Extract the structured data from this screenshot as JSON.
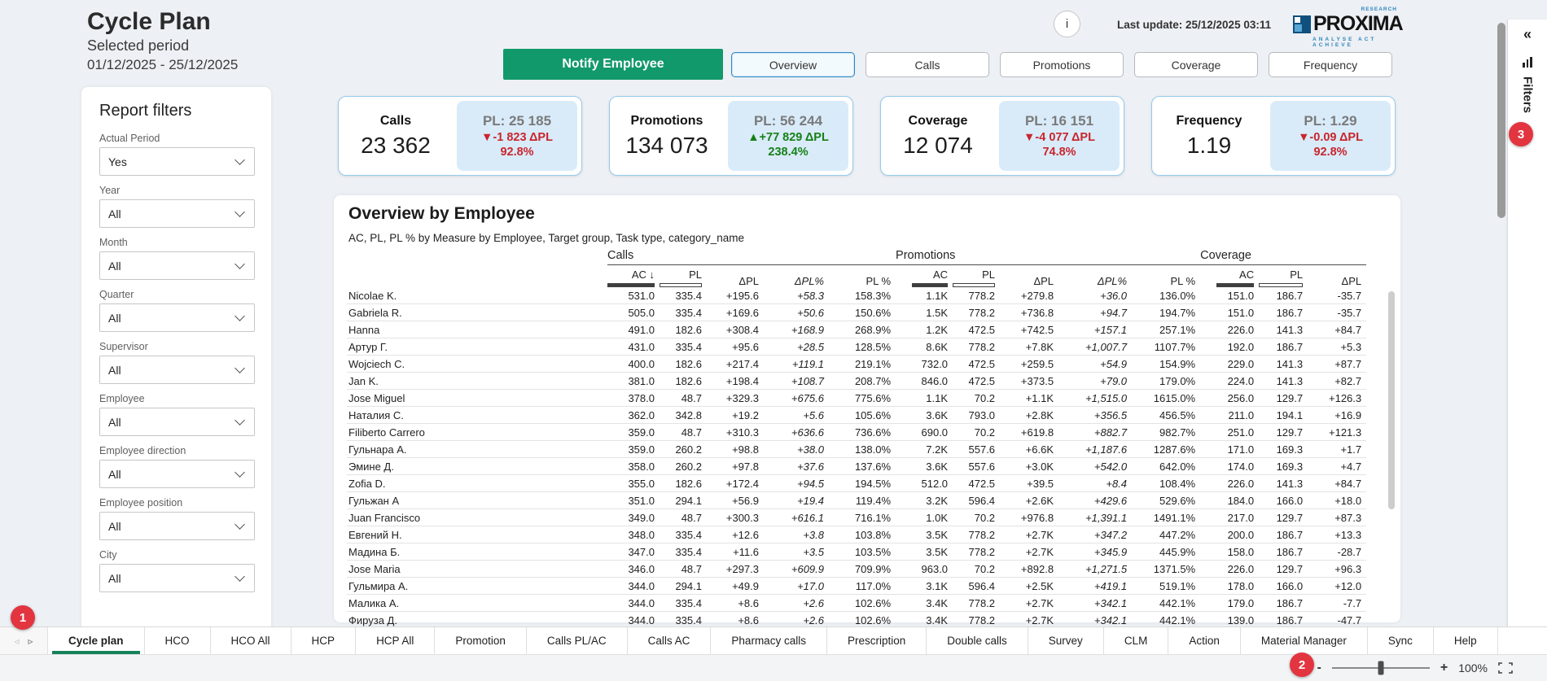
{
  "header": {
    "title": "Cycle Plan",
    "period_label": "Selected period",
    "period_value": "01/12/2025 - 25/12/2025",
    "info_icon": "i",
    "last_update": "Last update: 25/12/2025 03:11",
    "logo": {
      "research": "RESEARCH",
      "name": "PROXIMA",
      "tagline": "ANALYSE ACT ACHIEVE"
    }
  },
  "toolbar": {
    "notify_label": "Notify Employee",
    "view_tabs": [
      {
        "label": "Overview",
        "active": true
      },
      {
        "label": "Calls",
        "active": false
      },
      {
        "label": "Promotions",
        "active": false
      },
      {
        "label": "Coverage",
        "active": false
      },
      {
        "label": "Frequency",
        "active": false
      }
    ]
  },
  "kpis": [
    {
      "label": "Calls",
      "value": "23 362",
      "pl": "PL: 25 185",
      "delta": "▼-1 823 ΔPL",
      "delta_color": "red",
      "pct": "92.8%",
      "pct_color": "red"
    },
    {
      "label": "Promotions",
      "value": "134 073",
      "pl": "PL: 56 244",
      "delta": "▲+77 829 ΔPL",
      "delta_color": "green",
      "pct": "238.4%",
      "pct_color": "green"
    },
    {
      "label": "Coverage",
      "value": "12 074",
      "pl": "PL: 16 151",
      "delta": "▼-4 077 ΔPL",
      "delta_color": "red",
      "pct": "74.8%",
      "pct_color": "red"
    },
    {
      "label": "Frequency",
      "value": "1.19",
      "pl": "PL: 1.29",
      "delta": "▼-0.09 ΔPL",
      "delta_color": "red",
      "pct": "92.8%",
      "pct_color": "red"
    }
  ],
  "filters_panel": {
    "title": "Report filters",
    "items": [
      {
        "label": "Actual Period",
        "value": "Yes"
      },
      {
        "label": "Year",
        "value": "All"
      },
      {
        "label": "Month",
        "value": "All"
      },
      {
        "label": "Quarter",
        "value": "All"
      },
      {
        "label": "Supervisor",
        "value": "All"
      },
      {
        "label": "Employee",
        "value": "All"
      },
      {
        "label": "Employee direction",
        "value": "All"
      },
      {
        "label": "Employee position",
        "value": "All"
      },
      {
        "label": "City",
        "value": "All"
      }
    ]
  },
  "matrix": {
    "title": "Overview by Employee",
    "subtitle": "AC, PL, PL % by Measure by Employee, Target group, Task type, category_name",
    "groups": [
      {
        "label": "Calls",
        "columns": [
          {
            "label": "AC ↓",
            "bar": "solid"
          },
          {
            "label": "PL",
            "bar": "outline"
          },
          {
            "label": "ΔPL"
          },
          {
            "label": "ΔPL%",
            "italic": true
          },
          {
            "label": "PL %"
          }
        ]
      },
      {
        "label": "Promotions",
        "columns": [
          {
            "label": "AC",
            "bar": "solid"
          },
          {
            "label": "PL",
            "bar": "outline"
          },
          {
            "label": "ΔPL"
          },
          {
            "label": "ΔPL%",
            "italic": true
          },
          {
            "label": "PL %"
          }
        ]
      },
      {
        "label": "Coverage",
        "columns": [
          {
            "label": "AC",
            "bar": "solid"
          },
          {
            "label": "PL",
            "bar": "outline"
          },
          {
            "label": "ΔPL"
          }
        ]
      }
    ],
    "rows": [
      {
        "name": "Nicolae K.",
        "values": [
          "531.0",
          "335.4",
          "+195.6",
          "+58.3",
          "158.3%",
          "1.1K",
          "778.2",
          "+279.8",
          "+36.0",
          "136.0%",
          "151.0",
          "186.7",
          "-35.7"
        ]
      },
      {
        "name": "Gabriela R.",
        "values": [
          "505.0",
          "335.4",
          "+169.6",
          "+50.6",
          "150.6%",
          "1.5K",
          "778.2",
          "+736.8",
          "+94.7",
          "194.7%",
          "151.0",
          "186.7",
          "-35.7"
        ]
      },
      {
        "name": "Hanna",
        "values": [
          "491.0",
          "182.6",
          "+308.4",
          "+168.9",
          "268.9%",
          "1.2K",
          "472.5",
          "+742.5",
          "+157.1",
          "257.1%",
          "226.0",
          "141.3",
          "+84.7"
        ]
      },
      {
        "name": "Артур Г.",
        "values": [
          "431.0",
          "335.4",
          "+95.6",
          "+28.5",
          "128.5%",
          "8.6K",
          "778.2",
          "+7.8K",
          "+1,007.7",
          "1107.7%",
          "192.0",
          "186.7",
          "+5.3"
        ]
      },
      {
        "name": "Wojciech C.",
        "values": [
          "400.0",
          "182.6",
          "+217.4",
          "+119.1",
          "219.1%",
          "732.0",
          "472.5",
          "+259.5",
          "+54.9",
          "154.9%",
          "229.0",
          "141.3",
          "+87.7"
        ]
      },
      {
        "name": "Jan K.",
        "values": [
          "381.0",
          "182.6",
          "+198.4",
          "+108.7",
          "208.7%",
          "846.0",
          "472.5",
          "+373.5",
          "+79.0",
          "179.0%",
          "224.0",
          "141.3",
          "+82.7"
        ]
      },
      {
        "name": "Jose Miguel",
        "values": [
          "378.0",
          "48.7",
          "+329.3",
          "+675.6",
          "775.6%",
          "1.1K",
          "70.2",
          "+1.1K",
          "+1,515.0",
          "1615.0%",
          "256.0",
          "129.7",
          "+126.3"
        ]
      },
      {
        "name": "Наталия С.",
        "values": [
          "362.0",
          "342.8",
          "+19.2",
          "+5.6",
          "105.6%",
          "3.6K",
          "793.0",
          "+2.8K",
          "+356.5",
          "456.5%",
          "211.0",
          "194.1",
          "+16.9"
        ]
      },
      {
        "name": "Filiberto Carrero",
        "values": [
          "359.0",
          "48.7",
          "+310.3",
          "+636.6",
          "736.6%",
          "690.0",
          "70.2",
          "+619.8",
          "+882.7",
          "982.7%",
          "251.0",
          "129.7",
          "+121.3"
        ]
      },
      {
        "name": "Гульнара А.",
        "values": [
          "359.0",
          "260.2",
          "+98.8",
          "+38.0",
          "138.0%",
          "7.2K",
          "557.6",
          "+6.6K",
          "+1,187.6",
          "1287.6%",
          "171.0",
          "169.3",
          "+1.7"
        ]
      },
      {
        "name": "Эмине Д.",
        "values": [
          "358.0",
          "260.2",
          "+97.8",
          "+37.6",
          "137.6%",
          "3.6K",
          "557.6",
          "+3.0K",
          "+542.0",
          "642.0%",
          "174.0",
          "169.3",
          "+4.7"
        ]
      },
      {
        "name": "Zofia D.",
        "values": [
          "355.0",
          "182.6",
          "+172.4",
          "+94.5",
          "194.5%",
          "512.0",
          "472.5",
          "+39.5",
          "+8.4",
          "108.4%",
          "226.0",
          "141.3",
          "+84.7"
        ]
      },
      {
        "name": "Гульжан А",
        "values": [
          "351.0",
          "294.1",
          "+56.9",
          "+19.4",
          "119.4%",
          "3.2K",
          "596.4",
          "+2.6K",
          "+429.6",
          "529.6%",
          "184.0",
          "166.0",
          "+18.0"
        ]
      },
      {
        "name": "Juan Francisco",
        "values": [
          "349.0",
          "48.7",
          "+300.3",
          "+616.1",
          "716.1%",
          "1.0K",
          "70.2",
          "+976.8",
          "+1,391.1",
          "1491.1%",
          "217.0",
          "129.7",
          "+87.3"
        ]
      },
      {
        "name": "Евгений Н.",
        "values": [
          "348.0",
          "335.4",
          "+12.6",
          "+3.8",
          "103.8%",
          "3.5K",
          "778.2",
          "+2.7K",
          "+347.2",
          "447.2%",
          "200.0",
          "186.7",
          "+13.3"
        ]
      },
      {
        "name": "Мадина Б.",
        "values": [
          "347.0",
          "335.4",
          "+11.6",
          "+3.5",
          "103.5%",
          "3.5K",
          "778.2",
          "+2.7K",
          "+345.9",
          "445.9%",
          "158.0",
          "186.7",
          "-28.7"
        ]
      },
      {
        "name": "Jose Maria",
        "values": [
          "346.0",
          "48.7",
          "+297.3",
          "+609.9",
          "709.9%",
          "963.0",
          "70.2",
          "+892.8",
          "+1,271.5",
          "1371.5%",
          "226.0",
          "129.7",
          "+96.3"
        ]
      },
      {
        "name": "Гульмира А.",
        "values": [
          "344.0",
          "294.1",
          "+49.9",
          "+17.0",
          "117.0%",
          "3.1K",
          "596.4",
          "+2.5K",
          "+419.1",
          "519.1%",
          "178.0",
          "166.0",
          "+12.0"
        ]
      },
      {
        "name": "Малика А.",
        "values": [
          "344.0",
          "335.4",
          "+8.6",
          "+2.6",
          "102.6%",
          "3.4K",
          "778.2",
          "+2.7K",
          "+342.1",
          "442.1%",
          "179.0",
          "186.7",
          "-7.7"
        ]
      },
      {
        "name": "Фируза Д.",
        "values": [
          "344.0",
          "335.4",
          "+8.6",
          "+2.6",
          "102.6%",
          "3.4K",
          "778.2",
          "+2.7K",
          "+342.1",
          "442.1%",
          "139.0",
          "186.7",
          "-47.7"
        ]
      }
    ]
  },
  "bottom_nav": {
    "prev_arrow": "◃",
    "next_arrow": "▹",
    "tabs": [
      {
        "label": "Cycle plan",
        "active": true
      },
      {
        "label": "HCO"
      },
      {
        "label": "HCO All"
      },
      {
        "label": "HCP"
      },
      {
        "label": "HCP All"
      },
      {
        "label": "Promotion"
      },
      {
        "label": "Calls PL/AC"
      },
      {
        "label": "Calls AC"
      },
      {
        "label": "Pharmacy calls"
      },
      {
        "label": "Prescription"
      },
      {
        "label": "Double calls"
      },
      {
        "label": "Survey"
      },
      {
        "label": "CLM"
      },
      {
        "label": "Action"
      },
      {
        "label": "Material Manager"
      },
      {
        "label": "Sync"
      },
      {
        "label": "Help"
      }
    ]
  },
  "status_bar": {
    "zoom_out": "-",
    "zoom_in": "+",
    "zoom_level": "100%"
  },
  "side_pane": {
    "collapse_icon": "«",
    "label": "Filters"
  },
  "annotations": {
    "badge1": "1",
    "badge2": "2",
    "badge3": "3"
  },
  "colors": {
    "accent_green": "#12996b",
    "active_tab_green": "#15835a",
    "negative_red": "#c9252c",
    "positive_green": "#178017",
    "card_border_blue": "#96cbed",
    "card_pl_bg": "#d9ebf9",
    "badge_red": "#e23540"
  }
}
